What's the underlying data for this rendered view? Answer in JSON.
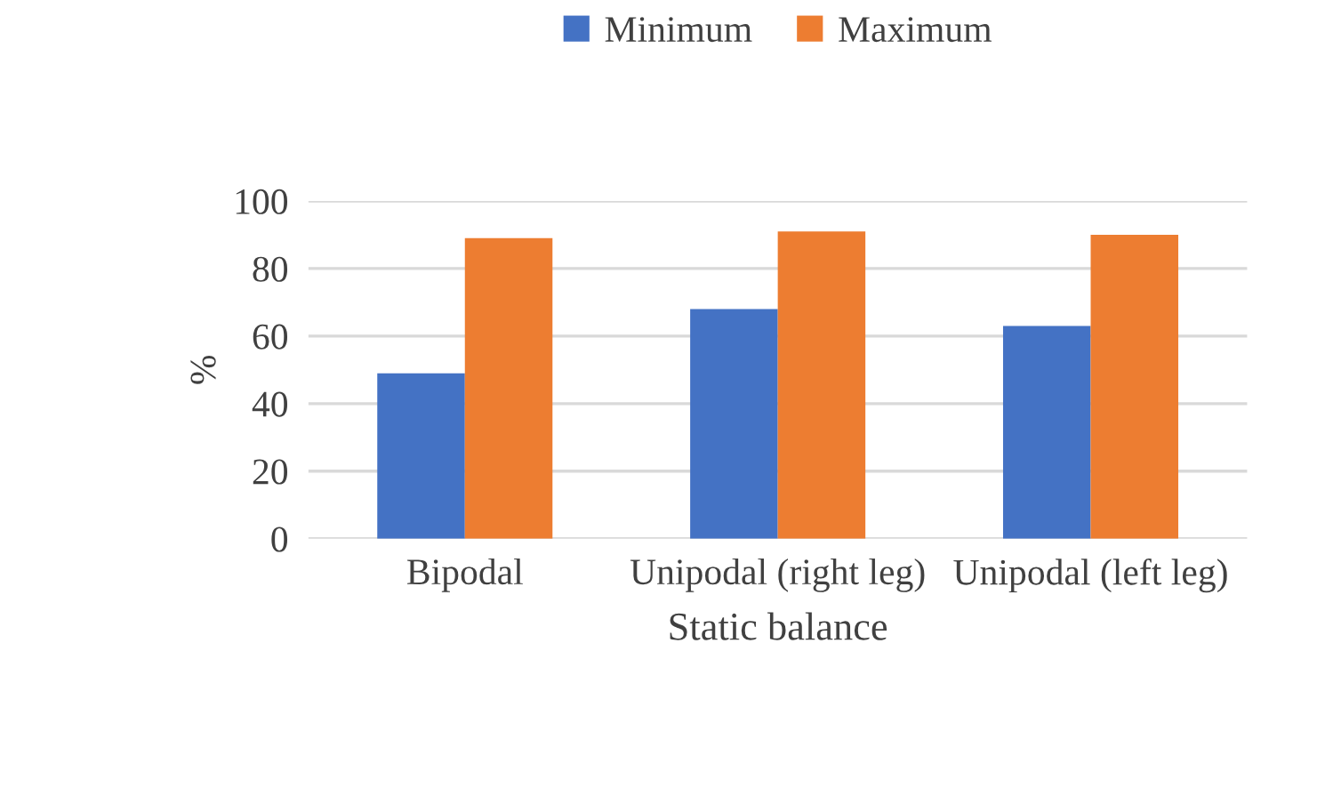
{
  "chart_data": {
    "type": "bar",
    "xlabel": "Static balance",
    "ylabel": "%",
    "categories": [
      "Bipodal",
      "Unipodal (right leg)",
      "Unipodal (left leg)"
    ],
    "series": [
      {
        "name": "Minimum",
        "color": "#4472c4",
        "values": [
          49,
          68,
          63
        ]
      },
      {
        "name": "Maximum",
        "color": "#ed7d31",
        "values": [
          89,
          91,
          90
        ]
      }
    ],
    "ylim": [
      0,
      100
    ],
    "yticks": [
      0,
      20,
      40,
      60,
      80,
      100
    ],
    "grid": "y",
    "legend": "top"
  }
}
